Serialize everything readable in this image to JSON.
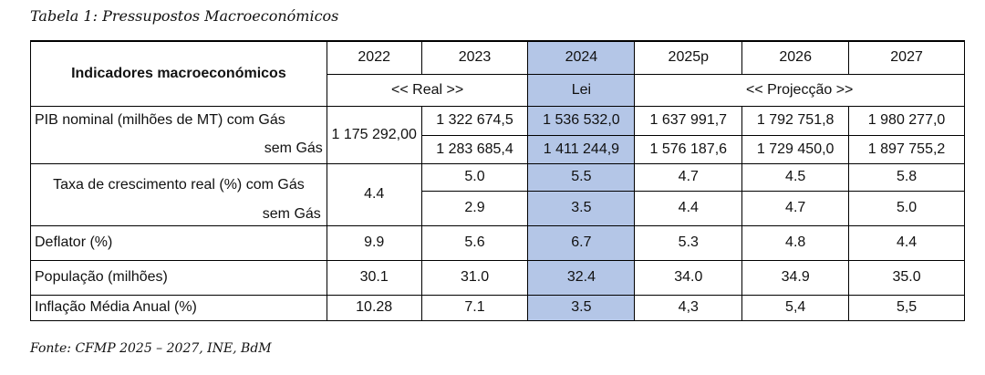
{
  "caption": "Tabela 1: Pressupostos Macroeconómicos",
  "source": "Fonte: CFMP 2025 – 2027, INE, BdM",
  "header": {
    "indicator_label": "Indicadores macroeconómicos",
    "years": [
      "2022",
      "2023",
      "2024",
      "2025p",
      "2026",
      "2027"
    ],
    "group_real": "<< Real >>",
    "group_lei": "Lei",
    "group_proj": "<<  Projecção  >>"
  },
  "rows": {
    "pib": {
      "label_com": "PIB nominal (milhões de MT) com Gás",
      "label_sem": "sem Gás",
      "v2022": "1 175 292,00",
      "com": [
        "1 322 674,5",
        "1 536 532,0",
        "1 637 991,7",
        "1 792 751,8",
        "1 980 277,0"
      ],
      "sem": [
        "1 283 685,4",
        "1 411 244,9",
        "1 576 187,6",
        "1 729 450,0",
        "1 897 755,2"
      ]
    },
    "taxa": {
      "label_com": "Taxa de crescimento real (%) com Gás",
      "label_sem": "sem Gás",
      "v2022": "4.4",
      "com": [
        "5.0",
        "5.5",
        "4.7",
        "4.5",
        "5.8"
      ],
      "sem": [
        "2.9",
        "3.5",
        "4.4",
        "4.7",
        "5.0"
      ]
    },
    "deflator": {
      "label": "Deflator (%)",
      "values": [
        "9.9",
        "5.6",
        "6.7",
        "5.3",
        "4.8",
        "4.4"
      ]
    },
    "populacao": {
      "label": "População (milhões)",
      "values": [
        "30.1",
        "31.0",
        "32.4",
        "34.0",
        "34.9",
        "35.0"
      ]
    },
    "inflacao": {
      "label": "Inflação Média Anual (%)",
      "values": [
        "10.28",
        "7.1",
        "3.5",
        "4,3",
        "5,4",
        "5,5"
      ]
    }
  },
  "colors": {
    "highlight": "#b4c6e7"
  }
}
